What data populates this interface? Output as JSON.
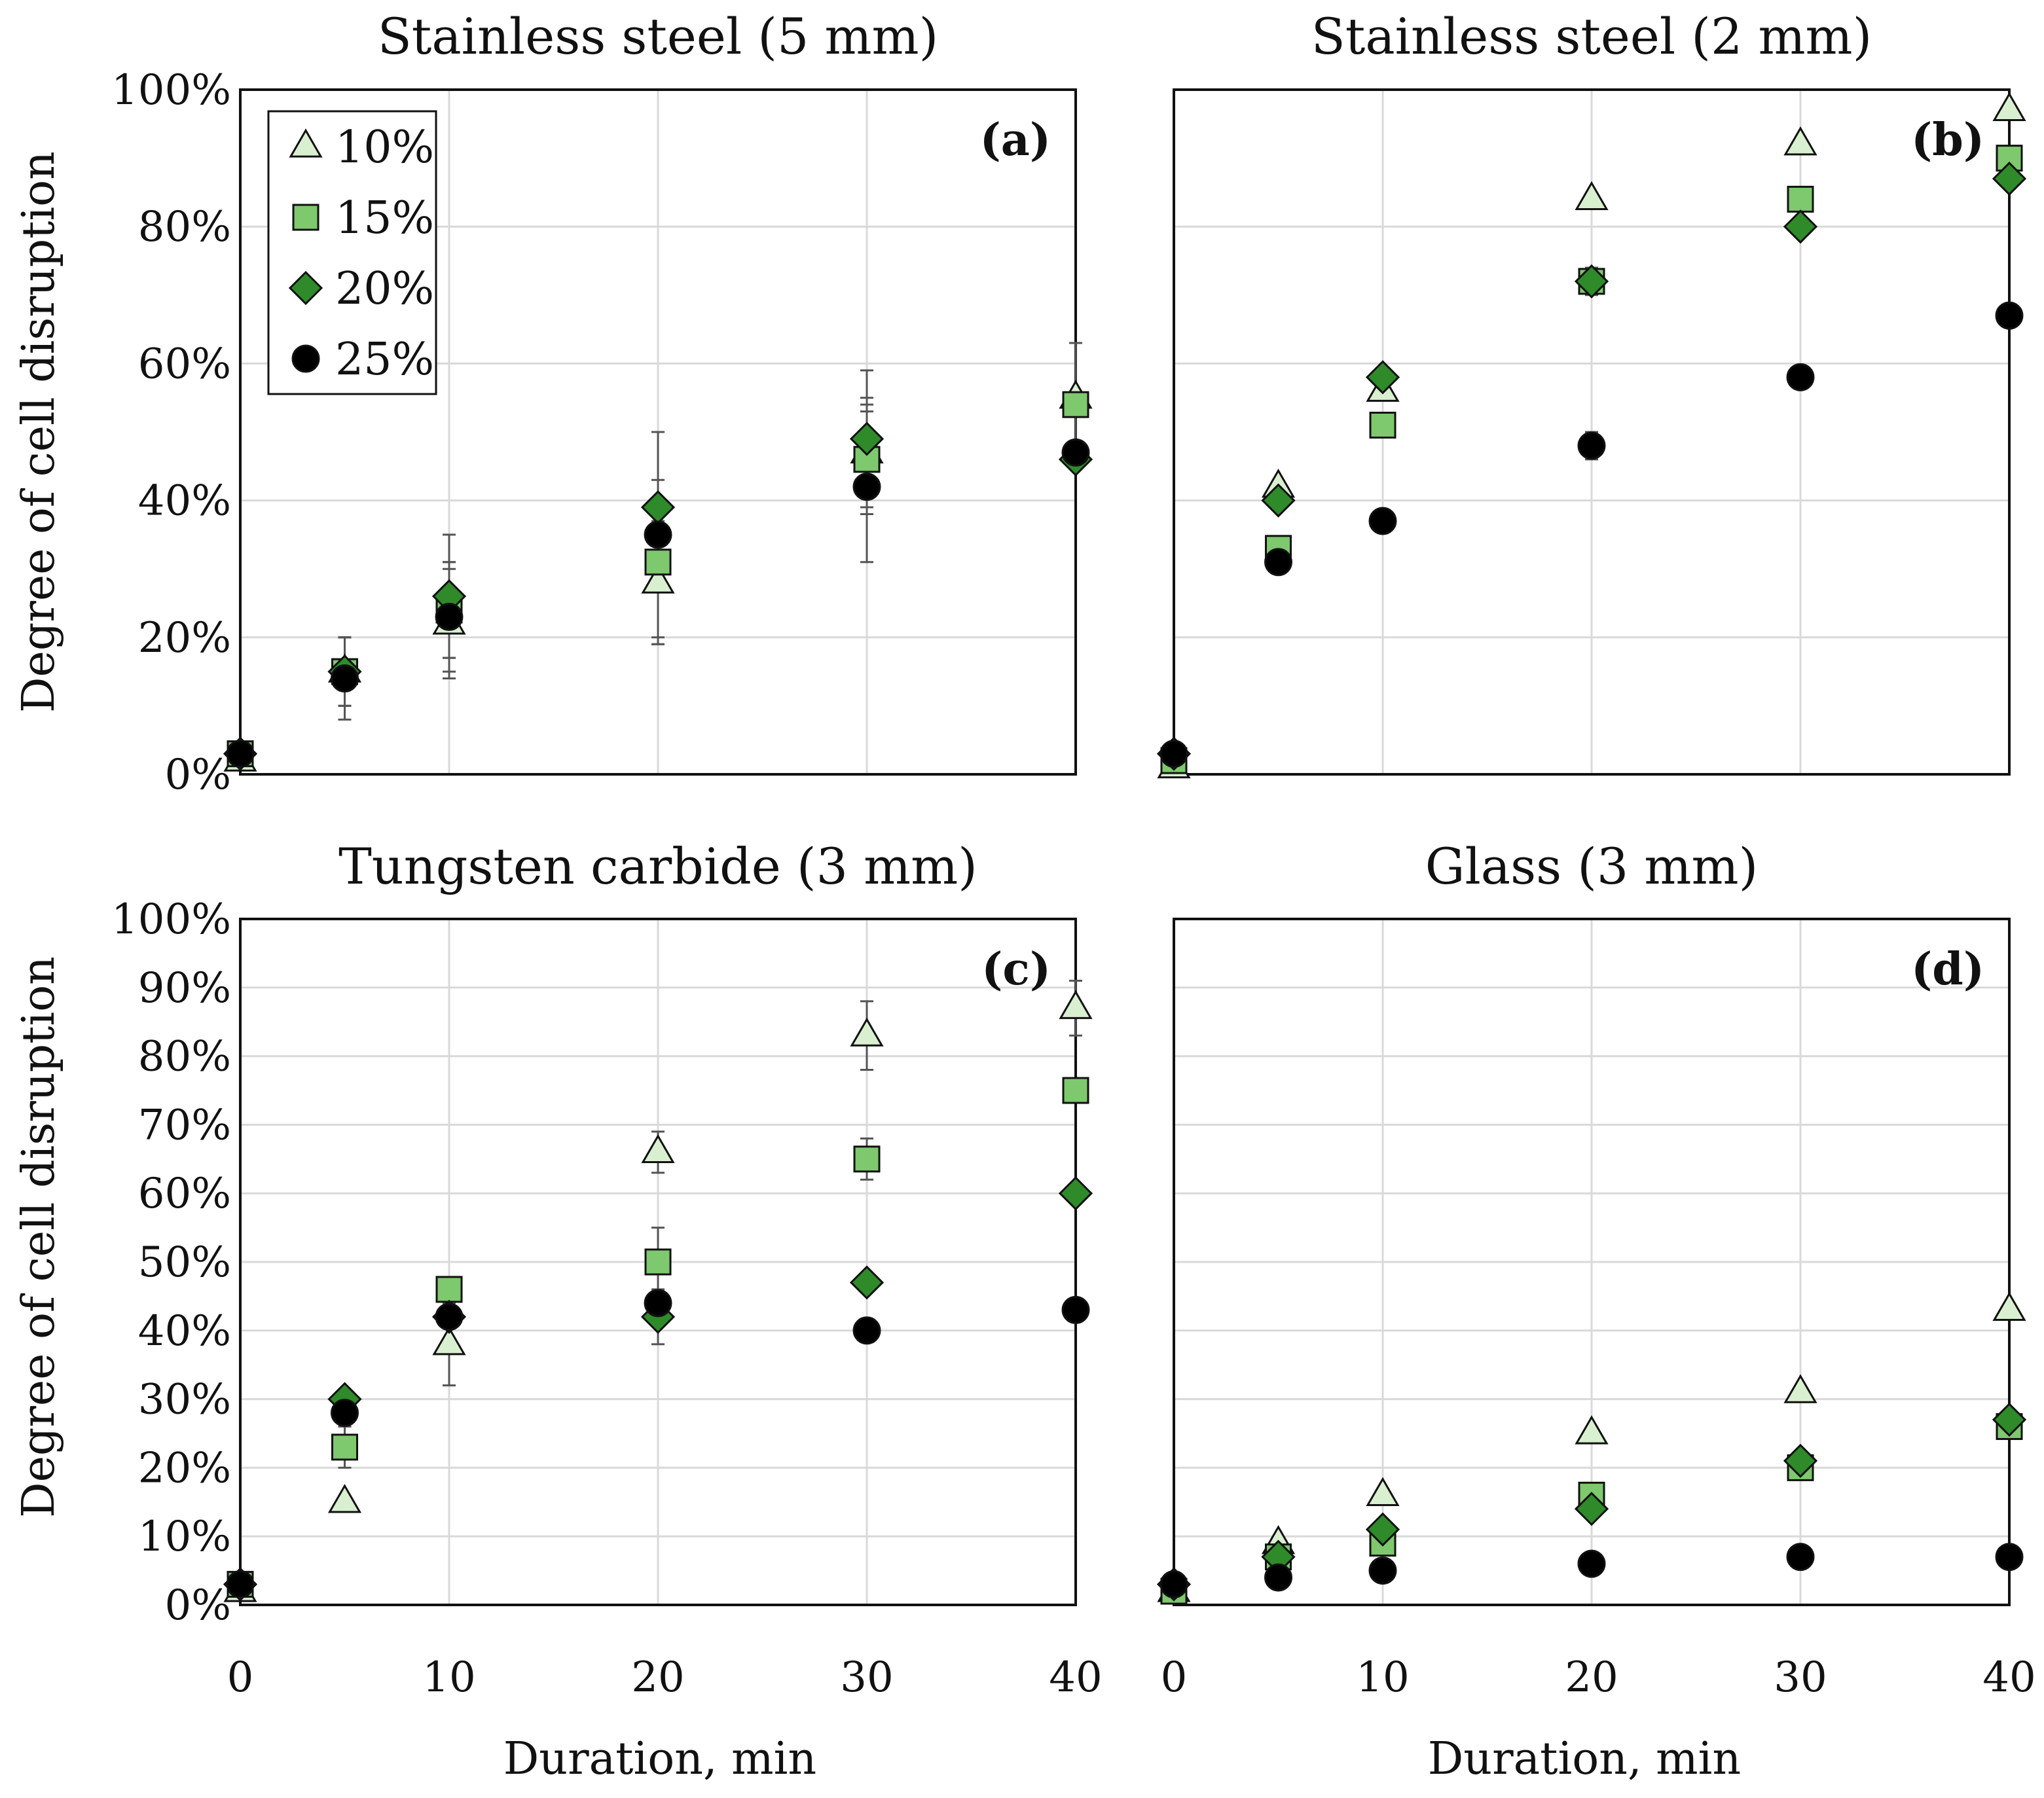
{
  "figure": {
    "ylabel": "Degree of cell disruption",
    "xlabel": "Duration, min",
    "legend": {
      "placement": "top-left (panel a)",
      "entries": [
        "10%",
        "15%",
        "20%",
        "25%"
      ]
    }
  },
  "colors": {
    "s10": "#d9f0d0",
    "s15": "#7ec86d",
    "s20": "#2f8a2a",
    "s25": "#000000",
    "grid": "#d9d9d9",
    "error_bar": "#555555"
  },
  "chart_data": [
    {
      "type": "scatter",
      "panel": "a",
      "title": "Stainless steel (5 mm)",
      "label": "(a)",
      "xlabel": "",
      "ylabel": "Degree of cell disruption",
      "xlim": [
        0,
        40
      ],
      "ylim": [
        0,
        100
      ],
      "x_ticks": [],
      "y_ticks": [
        "0%",
        "20%",
        "40%",
        "60%",
        "80%",
        "100%"
      ],
      "y_tick_values": [
        0,
        20,
        40,
        60,
        80,
        100
      ],
      "grid": true,
      "x": [
        0,
        5,
        10,
        20,
        30,
        40
      ],
      "series": [
        {
          "name": "10%",
          "marker": "triangle",
          "values": [
            2,
            15,
            22,
            28,
            47,
            55
          ],
          "errors": [
            0,
            5,
            8,
            9,
            8,
            8
          ]
        },
        {
          "name": "15%",
          "marker": "square",
          "values": [
            3,
            15,
            24,
            31,
            46,
            54
          ],
          "errors": [
            0,
            5,
            7,
            12,
            8,
            9
          ]
        },
        {
          "name": "20%",
          "marker": "diamond",
          "values": [
            3,
            15,
            26,
            39,
            49,
            46
          ],
          "errors": [
            0,
            5,
            9,
            11,
            10,
            0
          ]
        },
        {
          "name": "25%",
          "marker": "circle",
          "values": [
            3,
            14,
            23,
            35,
            42,
            47
          ],
          "errors": [
            0,
            6,
            8,
            15,
            11,
            0
          ]
        }
      ]
    },
    {
      "type": "scatter",
      "panel": "b",
      "title": "Stainless steel (2 mm)",
      "label": "(b)",
      "xlabel": "",
      "ylabel": "",
      "xlim": [
        0,
        40
      ],
      "ylim": [
        0,
        100
      ],
      "x_ticks": [],
      "y_ticks": [],
      "y_tick_values": [
        0,
        20,
        40,
        60,
        80,
        100
      ],
      "grid": true,
      "x": [
        0,
        5,
        10,
        20,
        30,
        40
      ],
      "series": [
        {
          "name": "10%",
          "marker": "triangle",
          "values": [
            1,
            42,
            56,
            84,
            92,
            97
          ],
          "errors": [
            0,
            0,
            0,
            0,
            0,
            0
          ]
        },
        {
          "name": "15%",
          "marker": "square",
          "values": [
            2,
            33,
            51,
            72,
            84,
            90
          ],
          "errors": [
            0,
            0,
            0,
            0,
            0,
            0
          ]
        },
        {
          "name": "20%",
          "marker": "diamond",
          "values": [
            3,
            40,
            58,
            72,
            80,
            87
          ],
          "errors": [
            0,
            0,
            0,
            2,
            0,
            0
          ]
        },
        {
          "name": "25%",
          "marker": "circle",
          "values": [
            3,
            31,
            37,
            48,
            58,
            67
          ],
          "errors": [
            0,
            0,
            0,
            2,
            0,
            0
          ]
        }
      ]
    },
    {
      "type": "scatter",
      "panel": "c",
      "title": "Tungsten carbide (3 mm)",
      "label": "(c)",
      "xlabel": "Duration, min",
      "ylabel": "Degree of cell disruption",
      "xlim": [
        0,
        40
      ],
      "ylim": [
        0,
        100
      ],
      "x_ticks": [
        "0",
        "10",
        "20",
        "30",
        "40"
      ],
      "x_tick_values": [
        0,
        10,
        20,
        30,
        40
      ],
      "y_ticks": [
        "0%",
        "10%",
        "20%",
        "30%",
        "40%",
        "50%",
        "60%",
        "70%",
        "80%",
        "90%",
        "100%"
      ],
      "y_tick_values": [
        0,
        10,
        20,
        30,
        40,
        50,
        60,
        70,
        80,
        90,
        100
      ],
      "grid": true,
      "x": [
        0,
        5,
        10,
        20,
        30,
        40
      ],
      "series": [
        {
          "name": "10%",
          "marker": "triangle",
          "values": [
            2,
            15,
            38,
            66,
            83,
            87
          ],
          "errors": [
            0,
            0,
            6,
            3,
            5,
            4
          ]
        },
        {
          "name": "15%",
          "marker": "square",
          "values": [
            3,
            23,
            46,
            50,
            65,
            75
          ],
          "errors": [
            0,
            3,
            0,
            5,
            3,
            0
          ]
        },
        {
          "name": "20%",
          "marker": "diamond",
          "values": [
            3,
            30,
            42,
            42,
            47,
            60
          ],
          "errors": [
            0,
            0,
            0,
            4,
            0,
            0
          ]
        },
        {
          "name": "25%",
          "marker": "circle",
          "values": [
            3,
            28,
            42,
            44,
            40,
            43
          ],
          "errors": [
            0,
            0,
            0,
            0,
            0,
            0
          ]
        }
      ]
    },
    {
      "type": "scatter",
      "panel": "d",
      "title": "Glass (3 mm)",
      "label": "(d)",
      "xlabel": "Duration, min",
      "ylabel": "",
      "xlim": [
        0,
        40
      ],
      "ylim": [
        0,
        100
      ],
      "x_ticks": [
        "0",
        "10",
        "20",
        "30",
        "40"
      ],
      "x_tick_values": [
        0,
        10,
        20,
        30,
        40
      ],
      "y_ticks": [],
      "y_tick_values": [
        0,
        10,
        20,
        30,
        40,
        50,
        60,
        70,
        80,
        90,
        100
      ],
      "grid": true,
      "x": [
        0,
        5,
        10,
        20,
        30,
        40
      ],
      "series": [
        {
          "name": "10%",
          "marker": "triangle",
          "values": [
            2,
            9,
            16,
            25,
            31,
            43
          ],
          "errors": [
            0,
            0,
            0,
            0,
            0,
            0
          ]
        },
        {
          "name": "15%",
          "marker": "square",
          "values": [
            2,
            7,
            9,
            16,
            20,
            26
          ],
          "errors": [
            0,
            0,
            0,
            0,
            0,
            0
          ]
        },
        {
          "name": "20%",
          "marker": "diamond",
          "values": [
            3,
            7,
            11,
            14,
            21,
            27
          ],
          "errors": [
            0,
            0,
            0,
            0,
            0,
            0
          ]
        },
        {
          "name": "25%",
          "marker": "circle",
          "values": [
            3,
            4,
            5,
            6,
            7,
            7
          ],
          "errors": [
            0,
            0,
            0,
            0,
            0,
            0
          ]
        }
      ]
    }
  ]
}
